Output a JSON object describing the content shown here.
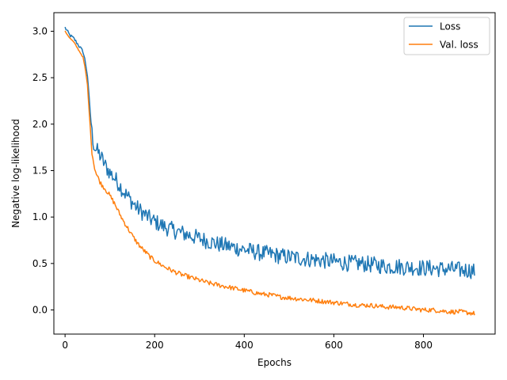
{
  "chart_data": {
    "type": "line",
    "title": "",
    "xlabel": "Epochs",
    "ylabel": "Negative log-likelihood",
    "xlim": [
      -25,
      960
    ],
    "ylim": [
      -0.26,
      3.2
    ],
    "xticks": [
      0,
      200,
      400,
      600,
      800
    ],
    "yticks": [
      0.0,
      0.5,
      1.0,
      1.5,
      2.0,
      2.5,
      3.0
    ],
    "grid": false,
    "legend_position": "top-right",
    "series": [
      {
        "name": "Loss",
        "color": "#1f77b4",
        "x": [
          0,
          10,
          20,
          30,
          40,
          45,
          50,
          55,
          60,
          65,
          70,
          80,
          90,
          100,
          110,
          120,
          130,
          140,
          150,
          160,
          170,
          180,
          190,
          200,
          220,
          240,
          260,
          280,
          300,
          320,
          340,
          360,
          380,
          400,
          420,
          440,
          460,
          480,
          500,
          520,
          540,
          560,
          580,
          600,
          620,
          640,
          660,
          680,
          700,
          720,
          740,
          760,
          780,
          800,
          820,
          840,
          860,
          880,
          900,
          915
        ],
        "values": [
          3.04,
          2.96,
          2.92,
          2.85,
          2.78,
          2.68,
          2.52,
          2.2,
          1.9,
          1.76,
          1.72,
          1.65,
          1.55,
          1.48,
          1.42,
          1.36,
          1.28,
          1.22,
          1.16,
          1.1,
          1.06,
          1.02,
          0.98,
          0.95,
          0.9,
          0.86,
          0.83,
          0.8,
          0.77,
          0.74,
          0.71,
          0.69,
          0.67,
          0.65,
          0.63,
          0.61,
          0.6,
          0.58,
          0.57,
          0.56,
          0.55,
          0.54,
          0.53,
          0.52,
          0.51,
          0.5,
          0.5,
          0.49,
          0.48,
          0.47,
          0.47,
          0.46,
          0.46,
          0.45,
          0.45,
          0.44,
          0.44,
          0.43,
          0.43,
          0.42
        ],
        "noise": 0.09
      },
      {
        "name": "Val. loss",
        "color": "#ff7f0e",
        "x": [
          0,
          10,
          20,
          30,
          40,
          45,
          50,
          55,
          60,
          65,
          70,
          80,
          90,
          100,
          110,
          120,
          130,
          140,
          150,
          160,
          170,
          180,
          190,
          200,
          220,
          240,
          260,
          280,
          300,
          320,
          340,
          360,
          380,
          400,
          420,
          440,
          460,
          480,
          500,
          520,
          540,
          560,
          580,
          600,
          620,
          640,
          660,
          680,
          700,
          720,
          740,
          760,
          780,
          800,
          820,
          840,
          860,
          880,
          900,
          915
        ],
        "values": [
          3.0,
          2.93,
          2.88,
          2.8,
          2.72,
          2.6,
          2.42,
          2.05,
          1.7,
          1.55,
          1.46,
          1.36,
          1.3,
          1.23,
          1.15,
          1.05,
          0.96,
          0.88,
          0.8,
          0.73,
          0.67,
          0.62,
          0.57,
          0.53,
          0.47,
          0.42,
          0.38,
          0.35,
          0.32,
          0.29,
          0.27,
          0.25,
          0.23,
          0.21,
          0.19,
          0.17,
          0.16,
          0.14,
          0.13,
          0.12,
          0.11,
          0.1,
          0.09,
          0.08,
          0.07,
          0.06,
          0.05,
          0.05,
          0.04,
          0.03,
          0.03,
          0.02,
          0.01,
          0.0,
          0.0,
          -0.01,
          -0.02,
          -0.02,
          -0.03,
          -0.04
        ],
        "noise": 0.025
      }
    ]
  }
}
